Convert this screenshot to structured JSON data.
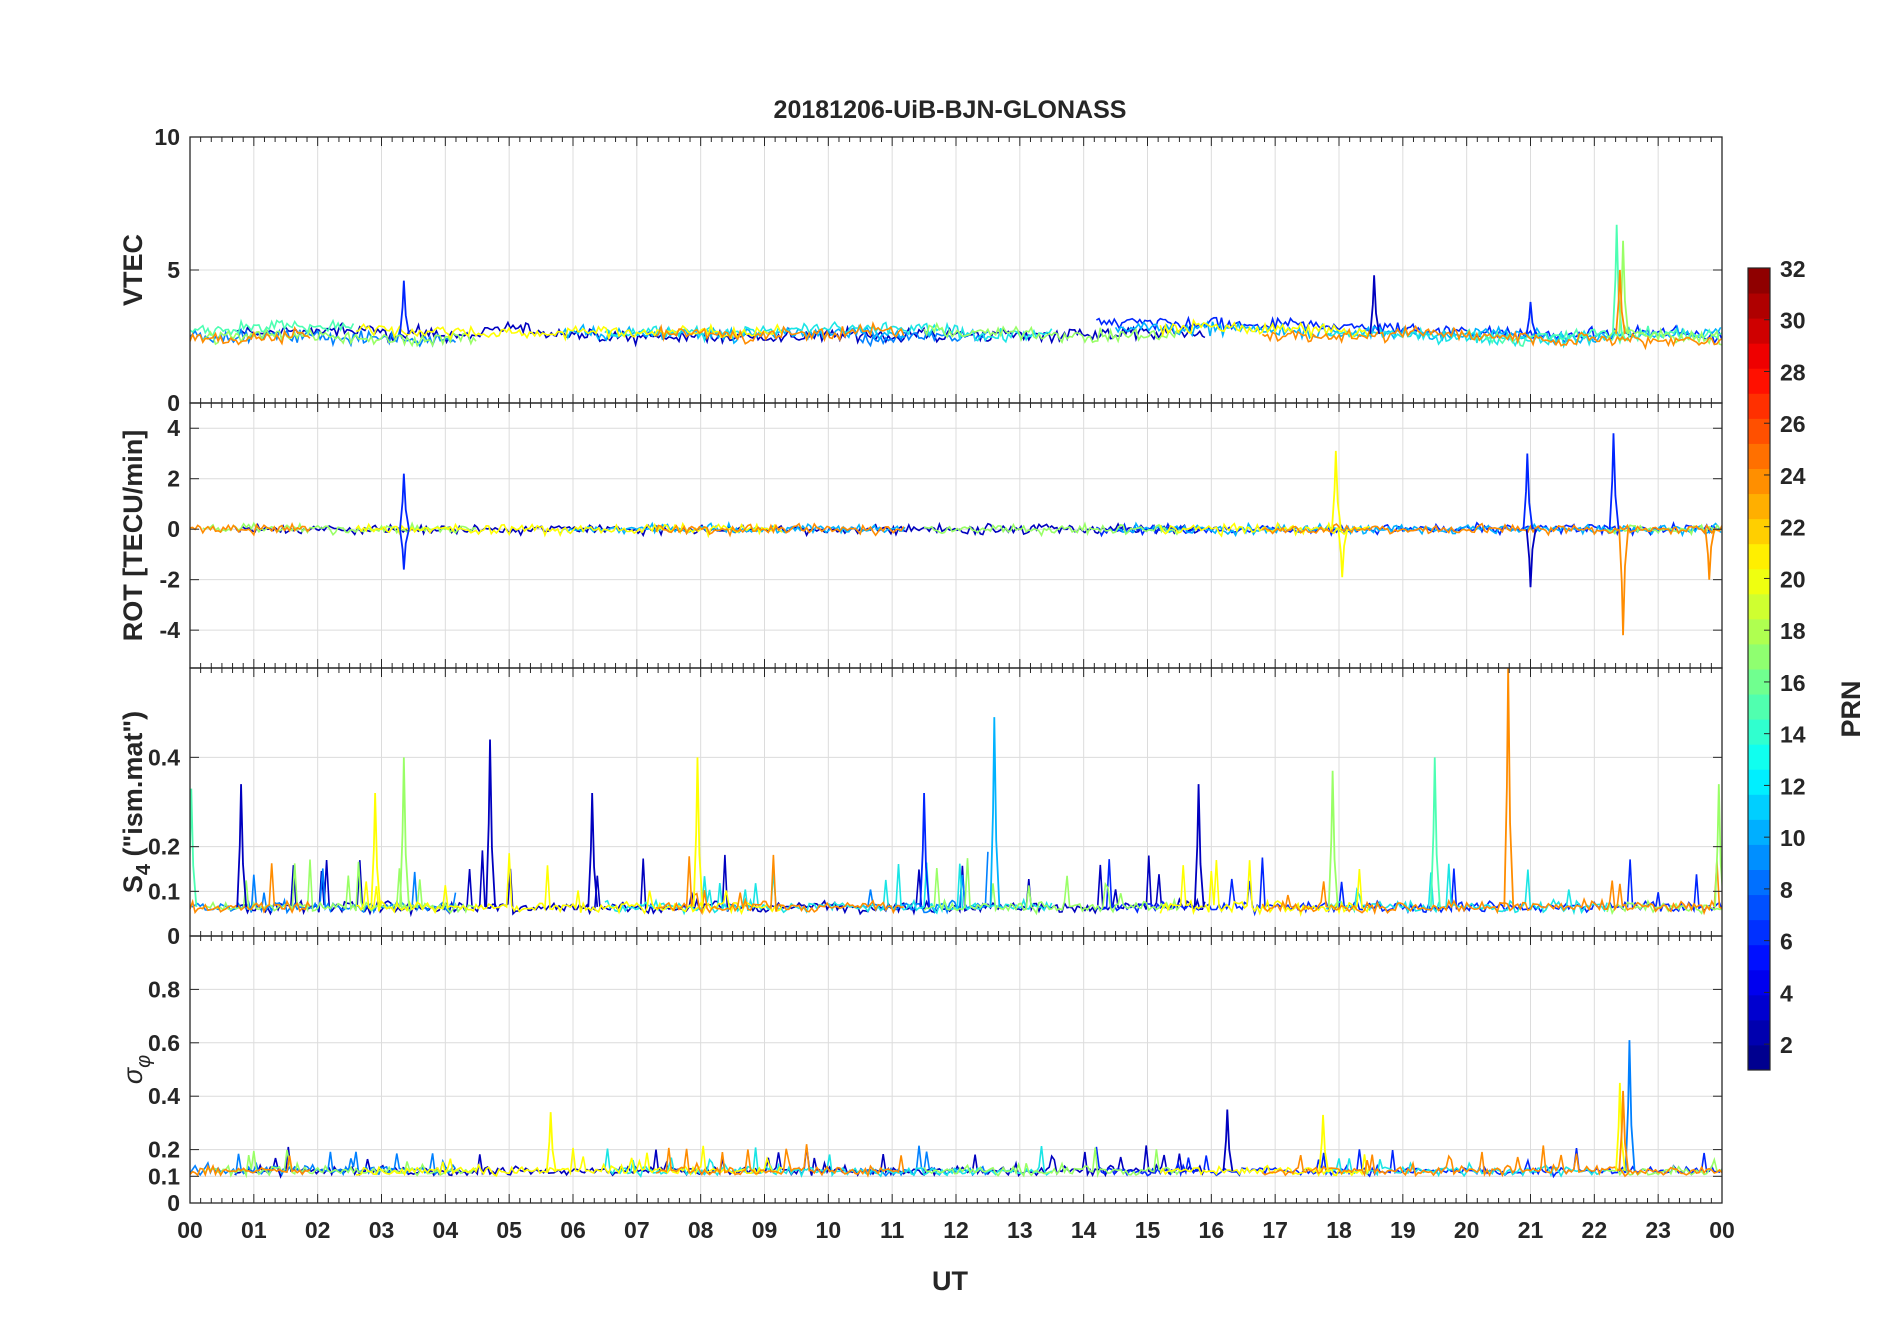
{
  "chart_data": {
    "type": "line",
    "title": "20181206-UiB-BJN-GLONASS",
    "xlabel": "UT",
    "x_tick_labels": [
      "00",
      "01",
      "02",
      "03",
      "04",
      "05",
      "06",
      "07",
      "08",
      "09",
      "10",
      "11",
      "12",
      "13",
      "14",
      "15",
      "16",
      "17",
      "18",
      "19",
      "20",
      "21",
      "22",
      "23",
      "00"
    ],
    "xlim": [
      0,
      24
    ],
    "grid": true,
    "colormap": "jet",
    "colorbar": {
      "label": "PRN",
      "range": [
        1,
        32
      ],
      "tick_labels": [
        "2",
        "4",
        "6",
        "8",
        "10",
        "12",
        "14",
        "16",
        "18",
        "20",
        "22",
        "24",
        "26",
        "28",
        "30",
        "32"
      ],
      "tick_values": [
        2,
        4,
        6,
        8,
        10,
        12,
        14,
        16,
        18,
        20,
        22,
        24,
        26,
        28,
        30,
        32
      ]
    },
    "panels": [
      {
        "ylabel": "VTEC",
        "ylim": [
          0,
          10
        ],
        "y_ticks": [
          0,
          5,
          10
        ],
        "y_tick_labels": [
          "0",
          "5",
          "10"
        ],
        "baseline": 2.6,
        "noise": 0.35,
        "wander": 0.7,
        "floor": 0.05,
        "series": [
          {
            "prn": 2,
            "color": "#0000bf",
            "segments": [
              [
                0.7,
                15.9
              ]
            ]
          },
          {
            "prn": 5,
            "color": "#0026ff",
            "segments": [
              [
                14.2,
                24
              ]
            ]
          },
          {
            "prn": 9,
            "color": "#0080ff",
            "segments": [
              [
                0,
                4.2
              ],
              [
                10.5,
                12.5
              ]
            ]
          },
          {
            "prn": 11,
            "color": "#00b2ff",
            "segments": [
              [
                5.8,
                11.2
              ],
              [
                14.5,
                24
              ]
            ]
          },
          {
            "prn": 13,
            "color": "#1ae5e5",
            "segments": [
              [
                6.5,
                13.5
              ],
              [
                17.8,
                22.2
              ]
            ]
          },
          {
            "prn": 15,
            "color": "#4cffb2",
            "segments": [
              [
                0,
                2.6
              ],
              [
                20.0,
                24
              ]
            ]
          },
          {
            "prn": 17,
            "color": "#99ff66",
            "segments": [
              [
                0.2,
                4.5
              ],
              [
                11.5,
                15.5
              ],
              [
                22.2,
                24
              ]
            ]
          },
          {
            "prn": 20,
            "color": "#ffff00",
            "segments": [
              [
                2.6,
                9.3
              ],
              [
                15.2,
                18.5
              ]
            ]
          },
          {
            "prn": 23,
            "color": "#ff8c00",
            "segments": [
              [
                0,
                1.9
              ],
              [
                7.3,
                11.2
              ],
              [
                16.8,
                24
              ]
            ]
          }
        ],
        "spikes": [
          {
            "x": 3.35,
            "y": 4.6,
            "color": "#0026ff"
          },
          {
            "x": 18.55,
            "y": 4.8,
            "color": "#0000bf"
          },
          {
            "x": 21.0,
            "y": 3.8,
            "color": "#0026ff"
          },
          {
            "x": 22.35,
            "y": 6.7,
            "color": "#4cffb2"
          },
          {
            "x": 22.45,
            "y": 6.1,
            "color": "#99ff66"
          },
          {
            "x": 22.4,
            "y": 5.0,
            "color": "#ff8c00"
          }
        ]
      },
      {
        "ylabel": "ROT [TECU/min]",
        "ylim": [
          -5.5,
          5
        ],
        "y_ticks": [
          -4,
          -2,
          0,
          2,
          4
        ],
        "y_tick_labels": [
          "-4",
          "-2",
          "0",
          "2",
          "4"
        ],
        "baseline": 0.0,
        "noise": 0.28,
        "wander": 0.0,
        "floor": -5.5,
        "series": [
          {
            "prn": 2,
            "color": "#0000bf",
            "segments": [
              [
                0.7,
                15.9
              ]
            ]
          },
          {
            "prn": 5,
            "color": "#0026ff",
            "segments": [
              [
                14.2,
                24
              ]
            ]
          },
          {
            "prn": 11,
            "color": "#00b2ff",
            "segments": [
              [
                5.8,
                11.2
              ],
              [
                14.5,
                24
              ]
            ]
          },
          {
            "prn": 17,
            "color": "#99ff66",
            "segments": [
              [
                0.2,
                4.5
              ],
              [
                11.5,
                15.5
              ],
              [
                22.2,
                24
              ]
            ]
          },
          {
            "prn": 20,
            "color": "#ffff00",
            "segments": [
              [
                2.6,
                9.3
              ],
              [
                15.2,
                18.5
              ]
            ]
          },
          {
            "prn": 23,
            "color": "#ff8c00",
            "segments": [
              [
                0,
                1.9
              ],
              [
                7.3,
                11.2
              ],
              [
                16.8,
                24
              ]
            ]
          }
        ],
        "spikes": [
          {
            "x": 3.35,
            "y": 2.2,
            "color": "#0026ff"
          },
          {
            "x": 3.35,
            "y": -1.6,
            "color": "#0026ff"
          },
          {
            "x": 17.95,
            "y": 3.1,
            "color": "#ffff00"
          },
          {
            "x": 18.05,
            "y": -1.9,
            "color": "#ffff00"
          },
          {
            "x": 20.95,
            "y": 3.0,
            "color": "#0026ff"
          },
          {
            "x": 21.0,
            "y": -2.3,
            "color": "#0000bf"
          },
          {
            "x": 22.3,
            "y": 3.8,
            "color": "#0026ff"
          },
          {
            "x": 22.45,
            "y": -4.2,
            "color": "#ff8c00"
          },
          {
            "x": 23.8,
            "y": -2.0,
            "color": "#ff8c00"
          }
        ]
      },
      {
        "ylabel": "S4 (\"ism.mat\")",
        "ylabel_main": "S",
        "ylabel_sub": "4",
        "ylabel_rest": " (\"ism.mat\")",
        "ylim": [
          0,
          0.6
        ],
        "y_ticks": [
          0,
          0.1,
          0.2,
          0.4
        ],
        "y_tick_labels": [
          "0",
          "0.1",
          "0.2",
          "0.4"
        ],
        "baseline": 0.065,
        "noise": 0.018,
        "wander": 0.0,
        "floor": 0.03,
        "series": [
          {
            "prn": 2,
            "color": "#0000bf",
            "segments": [
              [
                0.7,
                15.9
              ]
            ]
          },
          {
            "prn": 5,
            "color": "#0026ff",
            "segments": [
              [
                14.2,
                24
              ]
            ]
          },
          {
            "prn": 9,
            "color": "#0080ff",
            "segments": [
              [
                0,
                4.2
              ],
              [
                10.5,
                12.5
              ]
            ]
          },
          {
            "prn": 13,
            "color": "#1ae5e5",
            "segments": [
              [
                6.5,
                13.5
              ],
              [
                17.8,
                22.2
              ]
            ]
          },
          {
            "prn": 17,
            "color": "#99ff66",
            "segments": [
              [
                0.2,
                4.5
              ],
              [
                11.5,
                15.5
              ],
              [
                22.2,
                24
              ]
            ]
          },
          {
            "prn": 20,
            "color": "#ffff00",
            "segments": [
              [
                2.6,
                9.3
              ],
              [
                15.2,
                18.5
              ]
            ]
          },
          {
            "prn": 23,
            "color": "#ff8c00",
            "segments": [
              [
                0,
                1.9
              ],
              [
                7.3,
                11.2
              ],
              [
                16.8,
                24
              ]
            ]
          }
        ],
        "spikes": [
          {
            "x": 0.8,
            "y": 0.34,
            "color": "#0000bf"
          },
          {
            "x": 3.35,
            "y": 0.4,
            "color": "#99ff66"
          },
          {
            "x": 4.7,
            "y": 0.44,
            "color": "#0000bf"
          },
          {
            "x": 6.3,
            "y": 0.32,
            "color": "#0000bf"
          },
          {
            "x": 7.95,
            "y": 0.4,
            "color": "#ffff00"
          },
          {
            "x": 11.5,
            "y": 0.32,
            "color": "#0026ff"
          },
          {
            "x": 12.6,
            "y": 0.49,
            "color": "#00b2ff"
          },
          {
            "x": 15.8,
            "y": 0.34,
            "color": "#0000bf"
          },
          {
            "x": 17.9,
            "y": 0.37,
            "color": "#99ff66"
          },
          {
            "x": 19.5,
            "y": 0.4,
            "color": "#4cffb2"
          },
          {
            "x": 20.65,
            "y": 0.6,
            "color": "#ff8c00"
          },
          {
            "x": 23.95,
            "y": 0.34,
            "color": "#99ff66"
          },
          {
            "x": 0.02,
            "y": 0.33,
            "color": "#4cffb2"
          },
          {
            "x": 2.9,
            "y": 0.32,
            "color": "#ffff00"
          }
        ]
      },
      {
        "ylabel": "σ φ",
        "ylabel_main": "σ",
        "ylabel_sub": "φ",
        "ylim": [
          0,
          1
        ],
        "y_ticks": [
          0,
          0.1,
          0.2,
          0.4,
          0.6,
          0.8
        ],
        "y_tick_labels": [
          "0",
          "0.1",
          "0.2",
          "0.4",
          "0.6",
          "0.8"
        ],
        "baseline": 0.12,
        "noise": 0.025,
        "wander": 0.0,
        "floor": 0.06,
        "series": [
          {
            "prn": 2,
            "color": "#0000bf",
            "segments": [
              [
                0.7,
                15.9
              ]
            ]
          },
          {
            "prn": 5,
            "color": "#0026ff",
            "segments": [
              [
                14.2,
                24
              ]
            ]
          },
          {
            "prn": 9,
            "color": "#0080ff",
            "segments": [
              [
                0,
                4.2
              ],
              [
                10.5,
                12.5
              ]
            ]
          },
          {
            "prn": 13,
            "color": "#1ae5e5",
            "segments": [
              [
                6.5,
                13.5
              ],
              [
                17.8,
                22.2
              ]
            ]
          },
          {
            "prn": 17,
            "color": "#99ff66",
            "segments": [
              [
                0.2,
                4.5
              ],
              [
                11.5,
                15.5
              ],
              [
                22.2,
                24
              ]
            ]
          },
          {
            "prn": 20,
            "color": "#ffff00",
            "segments": [
              [
                2.6,
                9.3
              ],
              [
                15.2,
                18.5
              ]
            ]
          },
          {
            "prn": 23,
            "color": "#ff8c00",
            "segments": [
              [
                0,
                1.9
              ],
              [
                7.3,
                11.2
              ],
              [
                16.8,
                24
              ]
            ]
          }
        ],
        "spikes": [
          {
            "x": 22.55,
            "y": 0.61,
            "color": "#0080ff"
          },
          {
            "x": 22.4,
            "y": 0.45,
            "color": "#ffff00"
          },
          {
            "x": 22.45,
            "y": 0.42,
            "color": "#ff8c00"
          },
          {
            "x": 5.65,
            "y": 0.34,
            "color": "#ffff00"
          },
          {
            "x": 17.75,
            "y": 0.33,
            "color": "#ffff00"
          },
          {
            "x": 16.25,
            "y": 0.35,
            "color": "#0000bf"
          }
        ]
      }
    ]
  }
}
